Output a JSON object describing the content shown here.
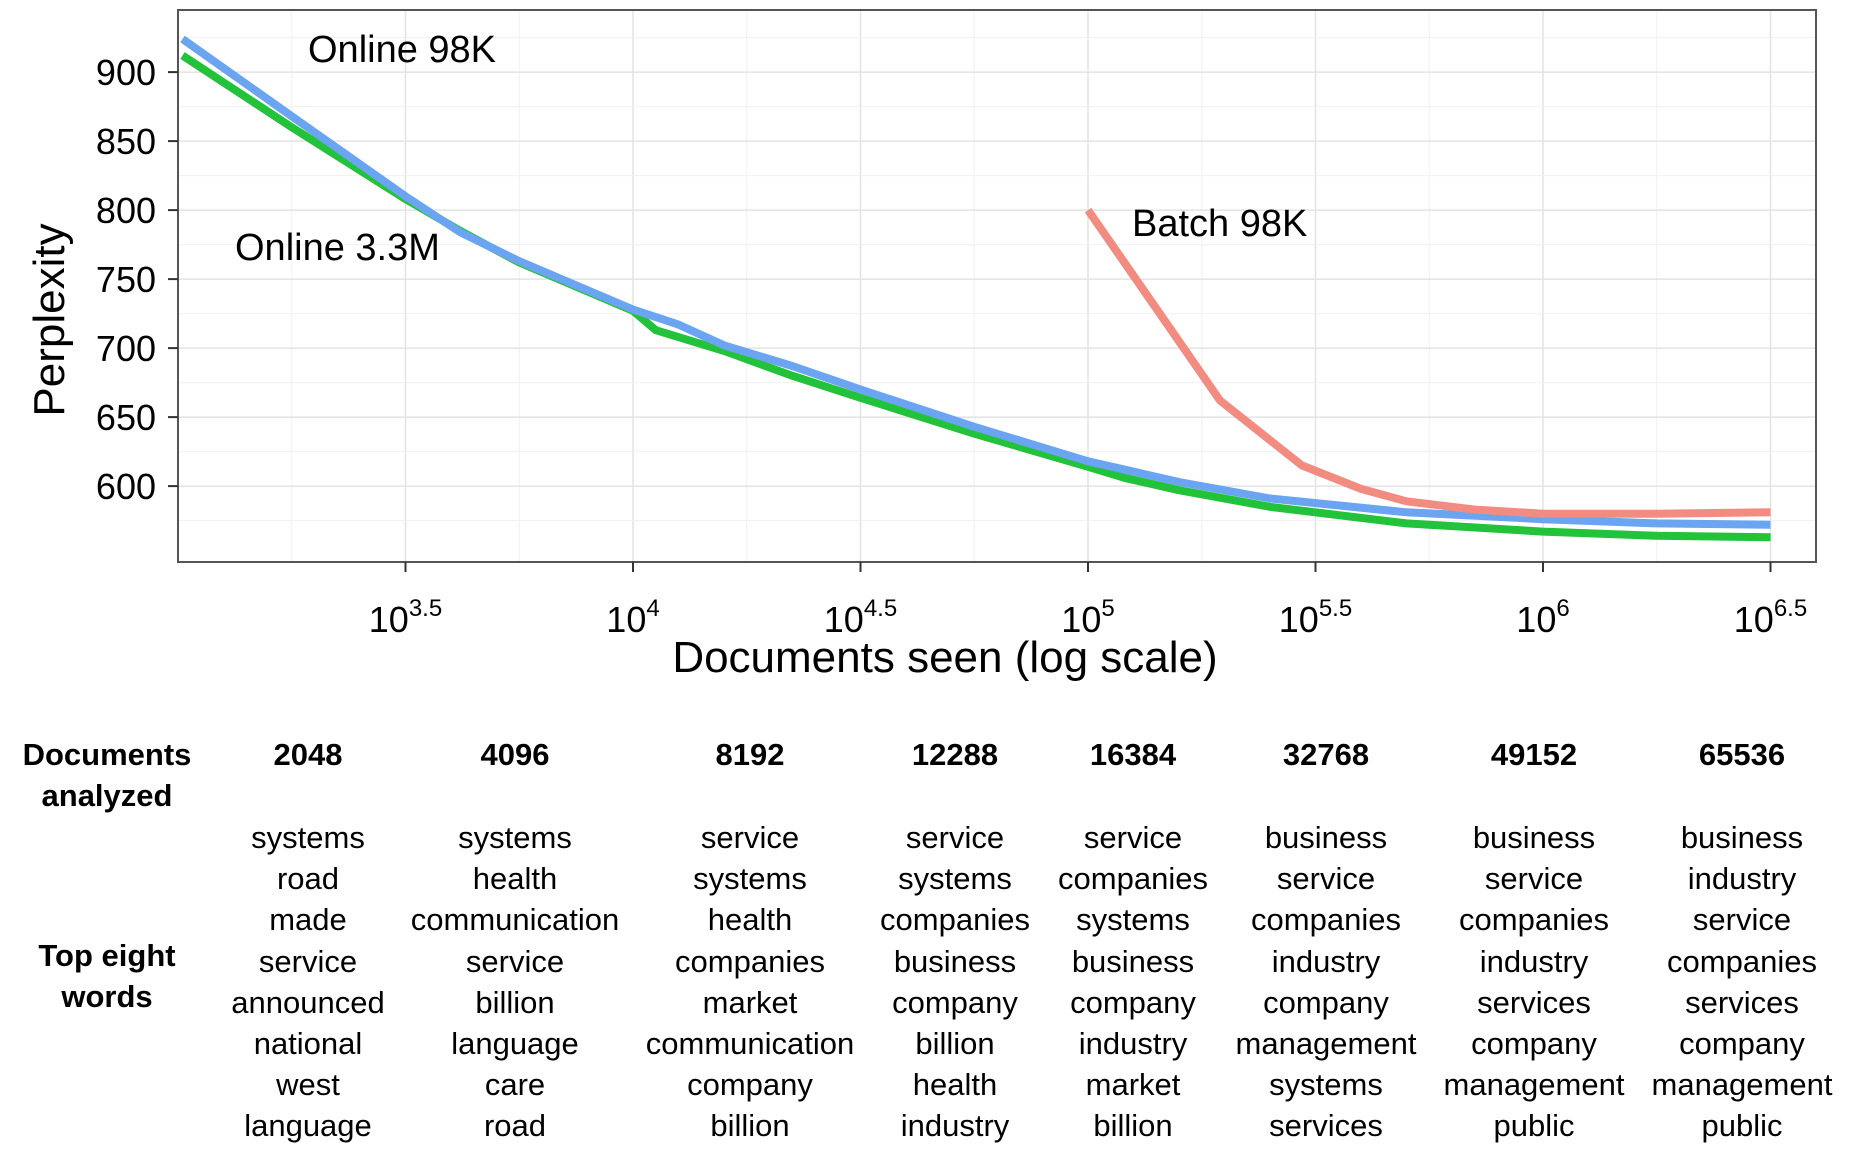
{
  "chart_data": {
    "type": "line",
    "xlabel": "Documents seen (log scale)",
    "ylabel": "Perplexity",
    "x_scale": "log10",
    "xlim_log10": [
      3.0,
      6.6
    ],
    "ylim": [
      545,
      945
    ],
    "x_ticks": [
      {
        "base": "10",
        "exp": "3.5",
        "log10": 3.5
      },
      {
        "base": "10",
        "exp": "4",
        "log10": 4.0
      },
      {
        "base": "10",
        "exp": "4.5",
        "log10": 4.5
      },
      {
        "base": "10",
        "exp": "5",
        "log10": 5.0
      },
      {
        "base": "10",
        "exp": "5.5",
        "log10": 5.5
      },
      {
        "base": "10",
        "exp": "6",
        "log10": 6.0
      },
      {
        "base": "10",
        "exp": "6.5",
        "log10": 6.5
      }
    ],
    "y_ticks": [
      "600",
      "650",
      "700",
      "750",
      "800",
      "850",
      "900"
    ],
    "grid": true,
    "series": [
      {
        "name": "Online 3.3M",
        "color": "#22c23a",
        "points": [
          [
            3.01,
            912
          ],
          [
            3.25,
            860
          ],
          [
            3.5,
            808
          ],
          [
            3.62,
            785
          ],
          [
            3.75,
            762
          ],
          [
            4.0,
            727
          ],
          [
            4.05,
            713
          ],
          [
            4.2,
            698
          ],
          [
            4.35,
            680
          ],
          [
            4.5,
            664
          ],
          [
            4.75,
            638
          ],
          [
            5.0,
            614
          ],
          [
            5.08,
            606
          ],
          [
            5.2,
            597
          ],
          [
            5.4,
            585
          ],
          [
            5.7,
            573
          ],
          [
            6.0,
            567
          ],
          [
            6.25,
            564
          ],
          [
            6.5,
            563
          ]
        ]
      },
      {
        "name": "Online 98K",
        "color": "#6ba4f0",
        "points": [
          [
            3.01,
            924
          ],
          [
            3.25,
            868
          ],
          [
            3.5,
            810
          ],
          [
            3.62,
            784
          ],
          [
            3.75,
            763
          ],
          [
            4.0,
            728
          ],
          [
            4.1,
            717
          ],
          [
            4.2,
            702
          ],
          [
            4.35,
            687
          ],
          [
            4.5,
            670
          ],
          [
            4.75,
            643
          ],
          [
            5.0,
            618
          ],
          [
            5.2,
            603
          ],
          [
            5.4,
            591
          ],
          [
            5.7,
            581
          ],
          [
            6.0,
            576
          ],
          [
            6.25,
            573
          ],
          [
            6.5,
            572
          ]
        ]
      },
      {
        "name": "Batch 98K",
        "color": "#f28b80",
        "points": [
          [
            5.0,
            800
          ],
          [
            5.29,
            662
          ],
          [
            5.47,
            615
          ],
          [
            5.6,
            598
          ],
          [
            5.7,
            589
          ],
          [
            5.85,
            583
          ],
          [
            6.0,
            580
          ],
          [
            6.25,
            580
          ],
          [
            6.5,
            581
          ]
        ]
      }
    ],
    "annotations": [
      {
        "text": "Online 98K"
      },
      {
        "text": "Online 3.3M"
      },
      {
        "text": "Batch 98K"
      }
    ]
  },
  "table": {
    "header_label": [
      "Documents",
      "analyzed"
    ],
    "rows_label": [
      "Top eight",
      "words"
    ],
    "columns": [
      {
        "n": "2048",
        "words": [
          "systems",
          "road",
          "made",
          "service",
          "announced",
          "national",
          "west",
          "language"
        ]
      },
      {
        "n": "4096",
        "words": [
          "systems",
          "health",
          "communication",
          "service",
          "billion",
          "language",
          "care",
          "road"
        ]
      },
      {
        "n": "8192",
        "words": [
          "service",
          "systems",
          "health",
          "companies",
          "market",
          "communication",
          "company",
          "billion"
        ]
      },
      {
        "n": "12288",
        "words": [
          "service",
          "systems",
          "companies",
          "business",
          "company",
          "billion",
          "health",
          "industry"
        ]
      },
      {
        "n": "16384",
        "words": [
          "service",
          "companies",
          "systems",
          "business",
          "company",
          "industry",
          "market",
          "billion"
        ]
      },
      {
        "n": "32768",
        "words": [
          "business",
          "service",
          "companies",
          "industry",
          "company",
          "management",
          "systems",
          "services"
        ]
      },
      {
        "n": "49152",
        "words": [
          "business",
          "service",
          "companies",
          "industry",
          "services",
          "company",
          "management",
          "public"
        ]
      },
      {
        "n": "65536",
        "words": [
          "business",
          "industry",
          "service",
          "companies",
          "services",
          "company",
          "management",
          "public"
        ]
      }
    ]
  }
}
